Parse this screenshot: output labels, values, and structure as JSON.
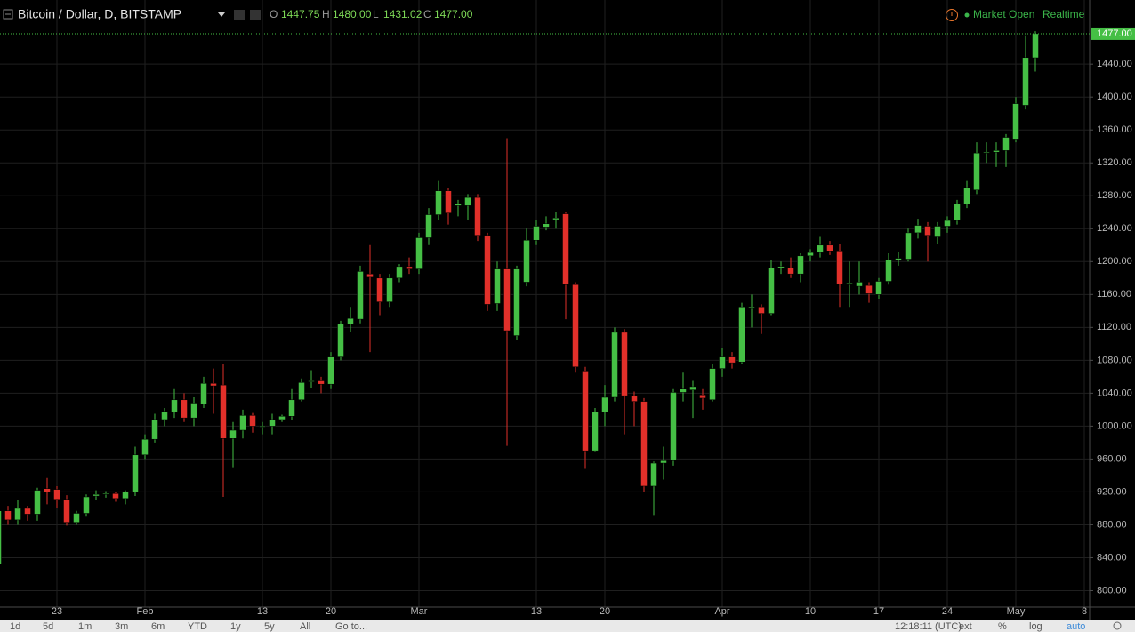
{
  "header": {
    "title": "Bitcoin / Dollar, D, BITSTAMP",
    "o_label": "O",
    "o": "1447.75",
    "h_label": "H",
    "h": "1480.00",
    "l_label": "L",
    "l": "1431.02",
    "c_label": "C",
    "c": "1477.00",
    "status": "Market Open",
    "feed": "Realtime"
  },
  "toolbar": {
    "ranges": [
      "1d",
      "5d",
      "1m",
      "3m",
      "6m",
      "YTD",
      "1y",
      "5y",
      "All"
    ],
    "goto": "Go to...",
    "clock": "12:18:11 (UTC)",
    "options": [
      "ext",
      "%",
      "log",
      "auto"
    ]
  },
  "chart_data": {
    "type": "candlestick",
    "categories": [
      null,
      null,
      null,
      null,
      null,
      null,
      "23",
      null,
      null,
      null,
      null,
      null,
      null,
      null,
      null,
      "Feb",
      null,
      null,
      null,
      null,
      null,
      null,
      null,
      null,
      null,
      null,
      null,
      "13",
      null,
      null,
      null,
      null,
      null,
      null,
      "20",
      null,
      null,
      null,
      null,
      null,
      null,
      null,
      null,
      "Mar",
      null,
      null,
      null,
      null,
      null,
      null,
      null,
      null,
      null,
      null,
      null,
      "13",
      null,
      null,
      null,
      null,
      null,
      null,
      "20",
      null,
      null,
      null,
      null,
      null,
      null,
      null,
      null,
      null,
      null,
      null,
      "Apr",
      null,
      null,
      null,
      null,
      null,
      null,
      null,
      null,
      "10",
      null,
      null,
      null,
      null,
      null,
      null,
      "17",
      null,
      null,
      null,
      null,
      null,
      null,
      "24",
      null,
      null,
      null,
      null,
      null,
      null,
      "May",
      null,
      null,
      null,
      null,
      null,
      null,
      "8"
    ],
    "open": [
      832,
      897,
      886,
      900,
      893,
      924,
      923,
      911,
      883,
      894,
      915,
      917,
      918,
      912,
      920,
      965,
      984,
      1008,
      1017,
      1032,
      1010,
      1027,
      1052,
      1050,
      985,
      995,
      1013,
      999,
      1000,
      1008,
      1012,
      1032,
      1054,
      1055,
      1051,
      1084,
      1124,
      1130,
      1185,
      1180,
      1151,
      1180,
      1194,
      1191,
      1229,
      1257,
      1286,
      1268,
      1268,
      1278,
      1232,
      1149,
      1191,
      1110,
      1175,
      1226,
      1242,
      1251,
      1258,
      1172,
      1067,
      970,
      1017,
      1035,
      1114,
      1037,
      1030,
      927,
      955,
      958,
      1041,
      1044,
      1038,
      1032,
      1070,
      1084,
      1078,
      1143,
      1145,
      1137,
      1192,
      1192,
      1185,
      1207,
      1211,
      1220,
      1213,
      1172,
      1170,
      1171,
      1160,
      1176,
      1202,
      1203,
      1235,
      1243,
      1230,
      1243,
      1250,
      1270,
      1287,
      1332,
      1333,
      1335,
      1349,
      1390,
      1447.75,
      null,
      null,
      null,
      null,
      null
    ],
    "high": [
      900,
      903,
      910,
      903,
      925,
      937,
      927,
      916,
      897,
      917,
      922,
      921,
      920,
      922,
      975,
      990,
      1015,
      1022,
      1045,
      1040,
      1035,
      1060,
      1070,
      1075,
      1005,
      1020,
      1016,
      1005,
      1015,
      1014,
      1045,
      1058,
      1068,
      1060,
      1090,
      1128,
      1145,
      1195,
      1220,
      1185,
      1185,
      1197,
      1205,
      1235,
      1265,
      1298,
      1290,
      1275,
      1282,
      1282,
      1235,
      1200,
      1350,
      1195,
      1240,
      1250,
      1255,
      1260,
      1260,
      1175,
      1072,
      1022,
      1050,
      1120,
      1118,
      1042,
      1034,
      957,
      975,
      1045,
      1065,
      1055,
      1045,
      1075,
      1095,
      1090,
      1150,
      1160,
      1148,
      1202,
      1200,
      1205,
      1210,
      1215,
      1230,
      1225,
      1222,
      1200,
      1200,
      1175,
      1180,
      1210,
      1212,
      1240,
      1252,
      1248,
      1248,
      1255,
      1275,
      1298,
      1345,
      1345,
      1345,
      1355,
      1400,
      1475,
      1480,
      null,
      null,
      null,
      null,
      null
    ],
    "low": [
      828,
      880,
      880,
      885,
      885,
      905,
      900,
      879,
      880,
      890,
      910,
      913,
      908,
      905,
      915,
      960,
      980,
      1000,
      1010,
      1005,
      1000,
      1022,
      1015,
      914,
      950,
      985,
      992,
      990,
      990,
      1005,
      1008,
      1030,
      1046,
      1040,
      1045,
      1080,
      1115,
      1125,
      1090,
      1135,
      1145,
      1175,
      1185,
      1185,
      1220,
      1250,
      1245,
      1255,
      1250,
      1225,
      1140,
      1140,
      976,
      1105,
      1170,
      1220,
      1238,
      1240,
      1130,
      1065,
      948,
      968,
      1000,
      1030,
      990,
      1000,
      920,
      892,
      935,
      952,
      1030,
      1010,
      1020,
      1030,
      1060,
      1070,
      1075,
      1120,
      1112,
      1135,
      1185,
      1180,
      1175,
      1200,
      1205,
      1208,
      1145,
      1145,
      1160,
      1150,
      1155,
      1172,
      1195,
      1200,
      1228,
      1200,
      1222,
      1235,
      1245,
      1265,
      1282,
      1320,
      1315,
      1315,
      1345,
      1385,
      1431.02,
      null,
      null,
      null,
      null,
      null
    ],
    "close": [
      897,
      886,
      900,
      893,
      922,
      920,
      911,
      883,
      894,
      914,
      917,
      918,
      912,
      920,
      965,
      984,
      1008,
      1018,
      1032,
      1010,
      1028,
      1052,
      1049,
      985,
      995,
      1013,
      1000,
      1000,
      1008,
      1012,
      1032,
      1053,
      1055,
      1051,
      1084,
      1124,
      1131,
      1188,
      1181,
      1151,
      1180,
      1194,
      1191,
      1229,
      1257,
      1286,
      1259,
      1270,
      1278,
      1232,
      1148,
      1191,
      1116,
      1191,
      1226,
      1243,
      1246,
      1253,
      1172,
      1072,
      970,
      1017,
      1035,
      1114,
      1037,
      1030,
      927,
      955,
      958,
      1041,
      1045,
      1048,
      1034,
      1070,
      1084,
      1077,
      1145,
      1145,
      1137,
      1192,
      1194,
      1185,
      1207,
      1211,
      1220,
      1213,
      1173,
      1174,
      1175,
      1161,
      1176,
      1202,
      1204,
      1235,
      1244,
      1232,
      1243,
      1250,
      1270,
      1290,
      1332,
      1333,
      1335,
      1351,
      1392,
      1448,
      1477,
      null,
      null,
      null,
      null,
      null
    ],
    "up_color": "#45bf45",
    "down_color": "#e2302a",
    "ylim": [
      780,
      1518
    ],
    "yticks": [
      {
        "value": 800,
        "label": "800.00"
      },
      {
        "value": 840,
        "label": "840.00"
      },
      {
        "value": 880,
        "label": "880.00"
      },
      {
        "value": 920,
        "label": "920.00"
      },
      {
        "value": 960,
        "label": "960.00"
      },
      {
        "value": 1000,
        "label": "1000.00"
      },
      {
        "value": 1040,
        "label": "1040.00"
      },
      {
        "value": 1080,
        "label": "1080.00"
      },
      {
        "value": 1120,
        "label": "1120.00"
      },
      {
        "value": 1160,
        "label": "1160.00"
      },
      {
        "value": 1200,
        "label": "1200.00"
      },
      {
        "value": 1240,
        "label": "1240.00"
      },
      {
        "value": 1280,
        "label": "1280.00"
      },
      {
        "value": 1320,
        "label": "1320.00"
      },
      {
        "value": 1360,
        "label": "1360.00"
      },
      {
        "value": 1400,
        "label": "1400.00"
      },
      {
        "value": 1440,
        "label": "1440.00"
      }
    ],
    "last_price": {
      "value": 1477,
      "label": "1477.00"
    },
    "grid": true
  }
}
